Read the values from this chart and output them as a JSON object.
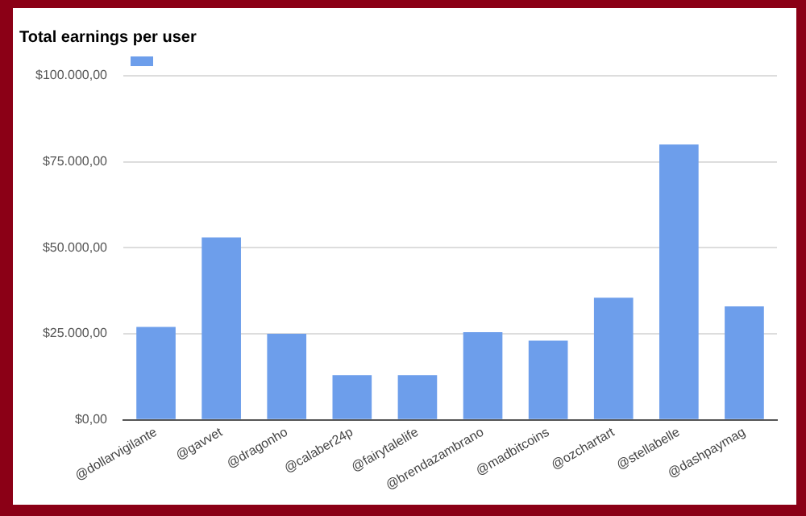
{
  "chart_data": {
    "type": "bar",
    "title": "Total earnings per user",
    "categories": [
      "@dollarvigilante",
      "@gavvet",
      "@dragonho",
      "@calaber24p",
      "@fairytalelife",
      "@brendazambrano",
      "@madbitcoins",
      "@ozchartart",
      "@stellabelle",
      "@dashpaymag"
    ],
    "values": [
      27000,
      53000,
      25000,
      13000,
      13000,
      25500,
      23000,
      35500,
      80000,
      33000
    ],
    "color": "#6d9eeb",
    "ylim": [
      0,
      100000
    ],
    "yticks": [
      {
        "value": 0,
        "label": "$0,00"
      },
      {
        "value": 25000,
        "label": "$25.000,00"
      },
      {
        "value": 50000,
        "label": "$50.000,00"
      },
      {
        "value": 75000,
        "label": "$75.000,00"
      },
      {
        "value": 100000,
        "label": "$100.000,00"
      }
    ],
    "grid": "y"
  }
}
